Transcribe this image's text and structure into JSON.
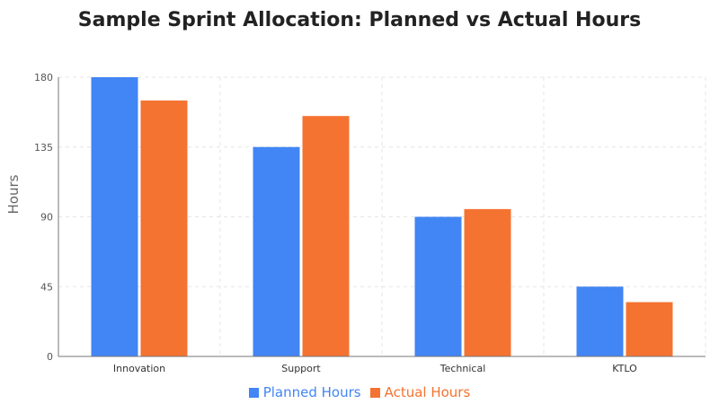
{
  "chart_data": {
    "type": "bar",
    "title": "Sample Sprint Allocation: Planned vs Actual Hours",
    "xlabel": "",
    "ylabel": "Hours",
    "categories": [
      "Innovation",
      "Support",
      "Technical",
      "KTLO"
    ],
    "series": [
      {
        "name": "Planned Hours",
        "color": "#4285f4",
        "values": [
          180,
          135,
          90,
          45
        ]
      },
      {
        "name": "Actual Hours",
        "color": "#f47331",
        "values": [
          165,
          155,
          95,
          35
        ]
      }
    ],
    "ylim": [
      0,
      180
    ],
    "yticks": [
      0,
      45,
      90,
      135,
      180
    ],
    "grid": true,
    "legend": "bottom-center"
  }
}
